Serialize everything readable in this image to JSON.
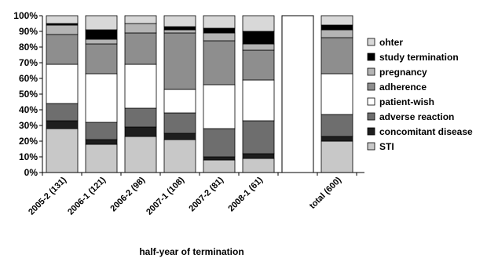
{
  "chart_data": {
    "type": "bar",
    "stacked": true,
    "title": "",
    "xlabel": "half-year of termination",
    "ylabel": "",
    "ylim": [
      0,
      100
    ],
    "y_ticks": [
      "0%",
      "10%",
      "20%",
      "30%",
      "40%",
      "50%",
      "60%",
      "70%",
      "80%",
      "90%",
      "100%"
    ],
    "categories": [
      "2005-2 (131)",
      "2006-1 (121)",
      "2006-2 (98)",
      "2007-1 (108)",
      "2007-2 (81)",
      "2008-1 (61)",
      "",
      "total (600)"
    ],
    "legend_position": "right",
    "grid": false,
    "series": [
      {
        "name": "STI",
        "color": "#c8c8c8",
        "values": [
          28,
          18,
          23,
          21,
          8,
          9,
          null,
          20
        ]
      },
      {
        "name": "concomitant disease",
        "color": "#1e1e1e",
        "values": [
          5,
          3,
          6,
          4,
          2,
          3,
          null,
          3
        ]
      },
      {
        "name": "adverse reaction",
        "color": "#6e6e6e",
        "values": [
          11,
          11,
          12,
          13,
          18,
          21,
          null,
          14
        ]
      },
      {
        "name": "patient-wish",
        "color": "#ffffff",
        "values": [
          25,
          31,
          28,
          15,
          28,
          26,
          null,
          26
        ]
      },
      {
        "name": "adherence",
        "color": "#8e8e8e",
        "values": [
          19,
          19,
          20,
          36,
          28,
          19,
          null,
          23
        ]
      },
      {
        "name": "pregnancy",
        "color": "#b4b4b4",
        "values": [
          6,
          3,
          6,
          2,
          5,
          4,
          null,
          5
        ]
      },
      {
        "name": "study termination",
        "color": "#000000",
        "values": [
          1,
          6,
          0,
          2,
          3,
          8,
          null,
          3
        ]
      },
      {
        "name": "ohter",
        "color": "#d8d8d8",
        "values": [
          5,
          9,
          5,
          7,
          8,
          10,
          null,
          6
        ]
      }
    ],
    "legend_order": [
      "ohter",
      "study termination",
      "pregnancy",
      "adherence",
      "patient-wish",
      "adverse reaction",
      "concomitant disease",
      "STI"
    ]
  }
}
